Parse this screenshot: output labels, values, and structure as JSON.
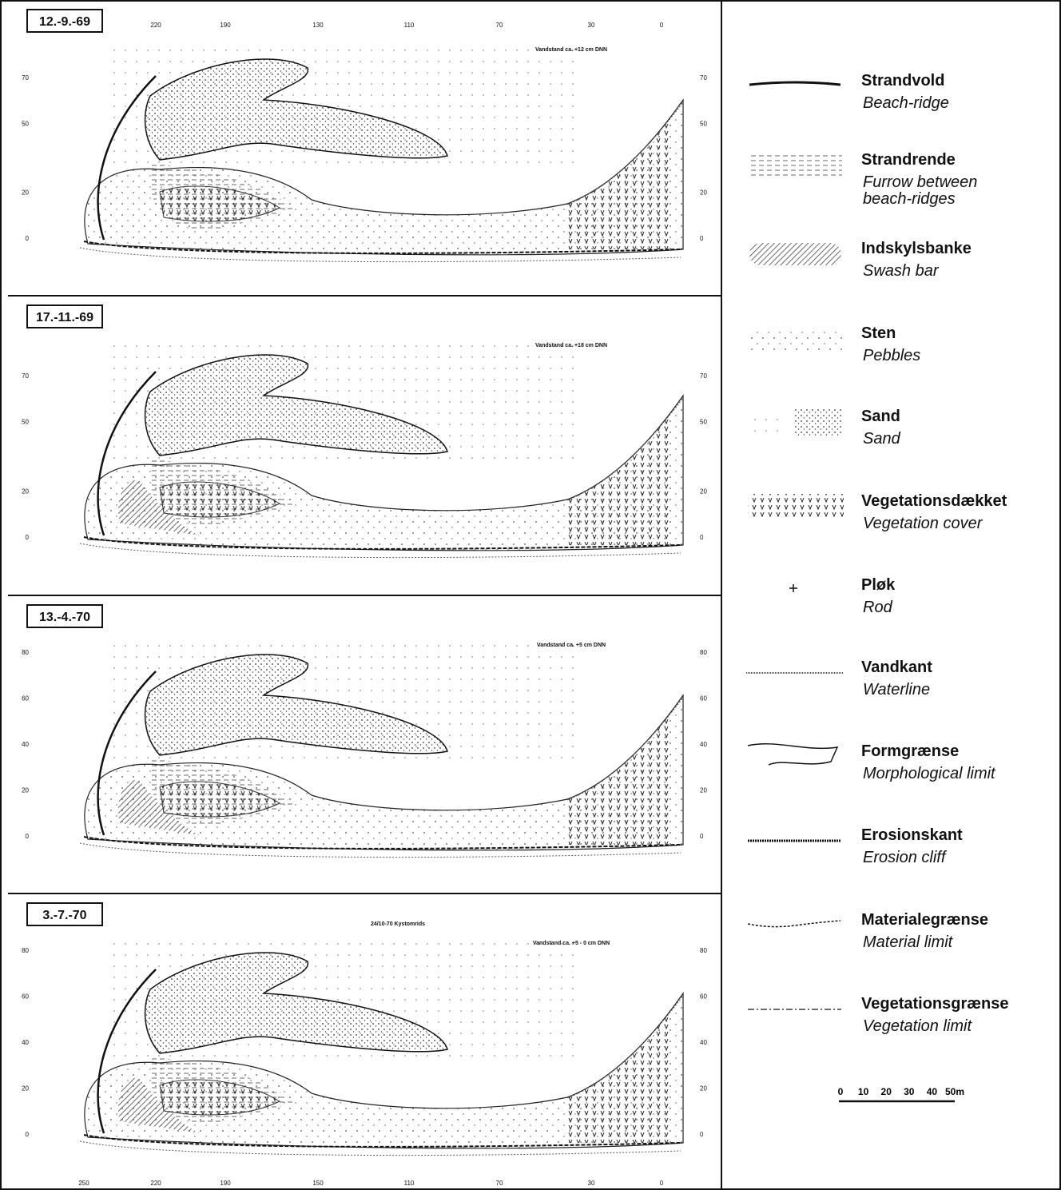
{
  "panels": [
    {
      "date": "12.-9.-69",
      "water_level": "Vandstand ca. +12 cm DNN",
      "top_labels": [
        "220",
        "190",
        "130",
        "110",
        "70",
        "30",
        "0"
      ],
      "left_labels": [
        "70",
        "50",
        "20",
        "0"
      ],
      "right_labels": [
        "70",
        "50",
        "20",
        "0"
      ]
    },
    {
      "date": "17.-11.-69",
      "water_level": "Vandstand ca. +18 cm DNN",
      "left_labels": [
        "70",
        "50",
        "20",
        "0"
      ],
      "right_labels": [
        "70",
        "50",
        "20",
        "0"
      ]
    },
    {
      "date": "13.-4.-70",
      "water_level": "Vandstand ca. +5 cm DNN",
      "left_labels": [
        "80",
        "60",
        "40",
        "20",
        "0"
      ],
      "right_labels": [
        "80",
        "60",
        "40",
        "20",
        "0"
      ]
    },
    {
      "date": "3.-7.-70",
      "water_level": "Vandstand ca. +5 - 0 cm DNN",
      "note": "24/10-70 Kystomrids",
      "left_labels": [
        "80",
        "60",
        "40",
        "20",
        "0"
      ],
      "right_labels": [
        "80",
        "60",
        "40",
        "20",
        "0"
      ],
      "bottom_labels": [
        "250",
        "220",
        "190",
        "150",
        "110",
        "70",
        "30",
        "0"
      ]
    }
  ],
  "legend": [
    {
      "danish": "Strandvold",
      "english": [
        "Beach-ridge"
      ]
    },
    {
      "danish": "Strandrende",
      "english": [
        "Furrow between",
        "beach-ridges"
      ]
    },
    {
      "danish": "Indskylsbanke",
      "english": [
        "Swash bar"
      ]
    },
    {
      "danish": "Sten",
      "english": [
        "Pebbles"
      ]
    },
    {
      "danish": "Sand",
      "english": [
        "Sand"
      ]
    },
    {
      "danish": "Vegetationsdækket",
      "english": [
        "Vegetation cover"
      ]
    },
    {
      "danish": "Pløk",
      "english": [
        "Rod"
      ]
    },
    {
      "danish": "Vandkant",
      "english": [
        "Waterline"
      ]
    },
    {
      "danish": "Formgrænse",
      "english": [
        "Morphological limit"
      ]
    },
    {
      "danish": "Erosionskant",
      "english": [
        "Erosion cliff"
      ]
    },
    {
      "danish": "Materialegrænse",
      "english": [
        "Material limit"
      ]
    },
    {
      "danish": "Vegetationsgrænse",
      "english": [
        "Vegetation limit"
      ]
    }
  ],
  "scale": {
    "labels": [
      "0",
      "10",
      "20",
      "30",
      "40",
      "50m"
    ]
  }
}
